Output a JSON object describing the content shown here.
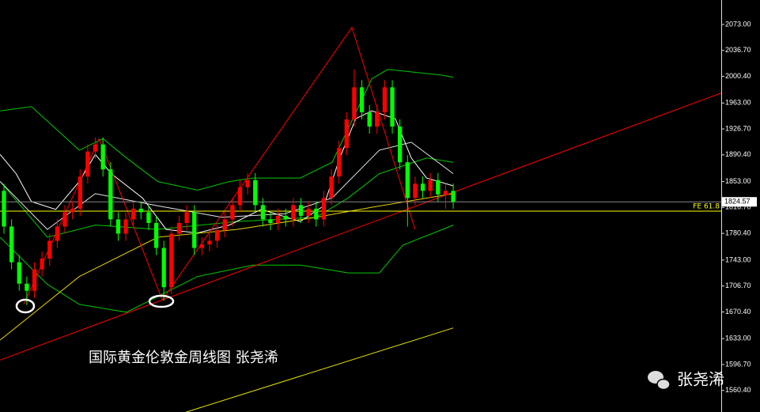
{
  "chart_data": {
    "type": "candlestick",
    "title": "国际黄金伦敦金周线图 张尧浠",
    "watermark": "张尧浠",
    "open": [
      1840,
      1790,
      1740,
      1710,
      1700,
      1730,
      1745,
      1770,
      1790,
      1810,
      1815,
      1860,
      1895,
      1905,
      1870,
      1800,
      1780,
      1800,
      1815,
      1810,
      1795,
      1760,
      1705,
      1780,
      1795,
      1810,
      1760,
      1765,
      1770,
      1785,
      1800,
      1820,
      1845,
      1855,
      1820,
      1800,
      1795,
      1805,
      1800,
      1820,
      1805,
      1815,
      1800,
      1830,
      1860,
      1900,
      1940,
      1985,
      1950,
      1930,
      1950,
      1985,
      1930,
      1880,
      1830,
      1850,
      1840,
      1855,
      1835,
      1840
    ],
    "high": [
      1850,
      1800,
      1750,
      1720,
      1740,
      1755,
      1780,
      1800,
      1820,
      1825,
      1870,
      1905,
      1915,
      1915,
      1880,
      1810,
      1810,
      1825,
      1825,
      1820,
      1805,
      1770,
      1790,
      1805,
      1820,
      1820,
      1775,
      1780,
      1795,
      1810,
      1830,
      1855,
      1865,
      1865,
      1830,
      1810,
      1815,
      1815,
      1830,
      1830,
      1825,
      1825,
      1840,
      1870,
      1910,
      1950,
      2010,
      1995,
      1960,
      1960,
      1995,
      1995,
      1940,
      1890,
      1860,
      1860,
      1865,
      1865,
      1850,
      1850
    ],
    "low": [
      1780,
      1730,
      1700,
      1680,
      1690,
      1720,
      1735,
      1760,
      1780,
      1800,
      1805,
      1850,
      1885,
      1860,
      1790,
      1770,
      1770,
      1790,
      1800,
      1785,
      1750,
      1686,
      1695,
      1770,
      1785,
      1750,
      1750,
      1755,
      1760,
      1775,
      1790,
      1810,
      1835,
      1810,
      1790,
      1785,
      1785,
      1790,
      1790,
      1795,
      1795,
      1790,
      1790,
      1820,
      1850,
      1890,
      1930,
      1940,
      1920,
      1920,
      1940,
      1920,
      1870,
      1790,
      1820,
      1830,
      1830,
      1825,
      1815,
      1815
    ],
    "close": [
      1790,
      1740,
      1710,
      1700,
      1730,
      1745,
      1770,
      1790,
      1810,
      1815,
      1860,
      1895,
      1905,
      1870,
      1800,
      1780,
      1800,
      1815,
      1810,
      1795,
      1760,
      1705,
      1780,
      1795,
      1810,
      1760,
      1765,
      1770,
      1785,
      1800,
      1820,
      1845,
      1855,
      1820,
      1800,
      1795,
      1805,
      1800,
      1820,
      1805,
      1815,
      1800,
      1830,
      1860,
      1900,
      1940,
      1985,
      1950,
      1930,
      1950,
      1985,
      1930,
      1880,
      1830,
      1850,
      1840,
      1855,
      1835,
      1840,
      1824.57
    ],
    "up_color": "#ff0000",
    "down_color": "#00ff00",
    "xlim": [
      -0.52,
      94.2
    ],
    "ylim": [
      1530.2,
      2107.3
    ],
    "yticks": [
      {
        "value": 2073.0,
        "label": "2073.00"
      },
      {
        "value": 2036.7,
        "label": "2036.70"
      },
      {
        "value": 2000.4,
        "label": "2000.40"
      },
      {
        "value": 1963.0,
        "label": "1963.00"
      },
      {
        "value": 1926.7,
        "label": "1926.70"
      },
      {
        "value": 1890.4,
        "label": "1890.40"
      },
      {
        "value": 1853.0,
        "label": "1853.00"
      },
      {
        "value": 1816.7,
        "label": "1816.70"
      },
      {
        "value": 1780.4,
        "label": "1780.40"
      },
      {
        "value": 1743.0,
        "label": "1743.00"
      },
      {
        "value": 1706.7,
        "label": "1706.70"
      },
      {
        "value": 1670.4,
        "label": "1670.40"
      },
      {
        "value": 1633.0,
        "label": "1633.00"
      },
      {
        "value": 1596.7,
        "label": "1596.70"
      },
      {
        "value": 1560.4,
        "label": "1560.40"
      }
    ],
    "lines": [
      {
        "color": "#00c800",
        "x": [
          -0.5,
          3.6,
          9.9,
          13,
          16.1,
          20.2,
          25.4,
          29.6,
          32.7,
          38.9,
          43.1,
          48.3,
          50.4,
          57.6,
          59
        ],
        "values": [
          1952,
          1958,
          1897,
          1913,
          1886,
          1853,
          1841,
          1853,
          1858,
          1858,
          1880,
          1997,
          2010,
          2002,
          1999
        ]
      },
      {
        "color": "#00c800",
        "x": [
          -0.5,
          5.7,
          9.9,
          16.1,
          20.2,
          25.4,
          32.7,
          38.9,
          45.2,
          49.3,
          52.4,
          57.6,
          59
        ],
        "values": [
          1775,
          1709,
          1681,
          1670,
          1692,
          1720,
          1736,
          1736,
          1725,
          1725,
          1764,
          1786,
          1792
        ]
      },
      {
        "color": "#00c800",
        "x": [
          -0.5,
          5.7,
          12,
          20.2,
          30.6,
          41,
          45.2,
          49.3,
          55.5,
          59
        ],
        "values": [
          1853,
          1775,
          1792,
          1786,
          1797,
          1803,
          1830,
          1864,
          1886,
          1880
        ]
      },
      {
        "color": "#ffffff",
        "x": [
          -0.5,
          1.6,
          3.6,
          6.8,
          9.9,
          12,
          14.1,
          18.2,
          21.3,
          25.4,
          29.6,
          33.8,
          38.9,
          42,
          44.1,
          46.2,
          48.3,
          51.4,
          53.5,
          55.5,
          59
        ],
        "values": [
          1891,
          1864,
          1825,
          1814,
          1853,
          1891,
          1864,
          1830,
          1786,
          1781,
          1792,
          1814,
          1797,
          1819,
          1886,
          1941,
          1952,
          1941,
          1886,
          1858,
          1847
        ]
      },
      {
        "color": "#e6e6e6",
        "x": [
          -0.5,
          5.7,
          12,
          20.2,
          28.6,
          36.9,
          43.1,
          49.3,
          53.5,
          59
        ],
        "values": [
          1853,
          1786,
          1836,
          1819,
          1803,
          1808,
          1830,
          1897,
          1908,
          1864
        ]
      },
      {
        "color": "#e6d200",
        "x": [
          -0.5,
          9.9,
          20.2,
          30.6,
          41,
          48.3,
          59
        ],
        "values": [
          1631,
          1720,
          1775,
          1786,
          1803,
          1817,
          1836
        ]
      },
      {
        "color": "#e6e600",
        "x": [
          23.9,
          59
        ],
        "values": [
          1530,
          1648
        ]
      },
      {
        "color": "#ff0000",
        "x": [
          -0.5,
          94.2
        ],
        "values": [
          1603,
          1977
        ]
      },
      {
        "color": "#ff0000",
        "x": [
          2.6,
          12.5,
          20.8,
          45.7,
          54
        ],
        "values": [
          1681,
          1913,
          1687,
          2069,
          1786
        ]
      }
    ],
    "fe_level": {
      "label": "FE 61.8",
      "value": 1811.6,
      "color": "#ffff00"
    },
    "price": {
      "value": 1824.57,
      "label": "1824.57"
    }
  }
}
